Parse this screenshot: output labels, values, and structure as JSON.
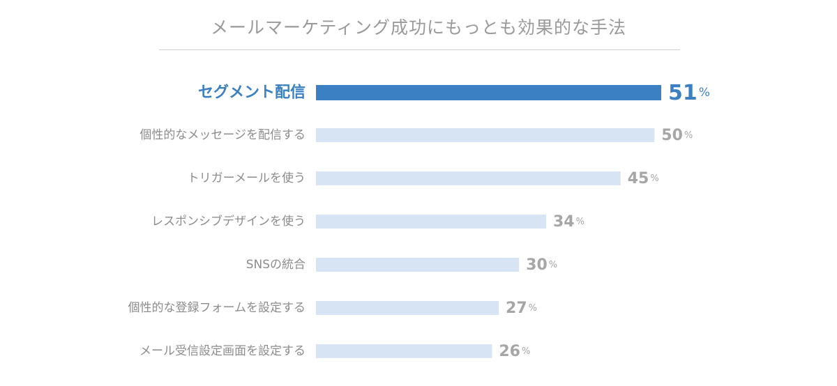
{
  "chart_data": {
    "type": "bar",
    "orientation": "horizontal",
    "title": "メールマーケティング成功にもっとも効果的な手法",
    "categories": [
      "セグメント配信",
      "個性的なメッセージを配信する",
      "トリガーメールを使う",
      "レスポンシブデザインを使う",
      "SNSの統合",
      "個性的な登録フォームを設定する",
      "メール受信設定画面を設定する"
    ],
    "values": [
      51,
      50,
      45,
      34,
      30,
      27,
      26
    ],
    "value_suffix": "%",
    "highlight_index": 0,
    "xlim": [
      0,
      51
    ],
    "grid": false,
    "legend": "none",
    "colors": {
      "highlight_bar": "#3a80c3",
      "highlight_text": "#3a80c3",
      "bar": "#d6e4f3",
      "label": "#8c8c8c",
      "value": "#a6a6a6",
      "title": "#9a9a9a",
      "rule": "#cfcfcf"
    }
  }
}
